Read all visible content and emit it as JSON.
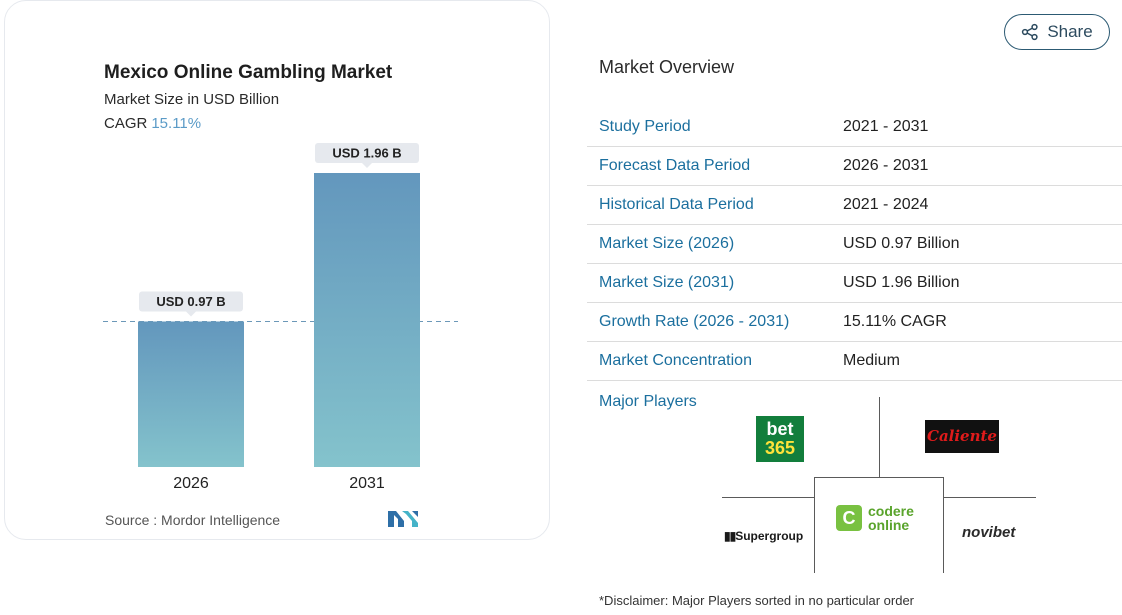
{
  "chart_card": {
    "title": "Mexico Online Gambling Market",
    "subtitle": "Market Size in USD Billion",
    "cagr_label": "CAGR",
    "cagr_value": "15.11%",
    "source": "Source :  Mordor Intelligence"
  },
  "chart_data": {
    "type": "bar",
    "title": "Mexico Online Gambling Market",
    "ylabel": "Market Size in USD Billion",
    "categories": [
      "2026",
      "2031"
    ],
    "values": [
      0.97,
      1.96
    ],
    "data_labels": [
      "USD 0.97 B",
      "USD 1.96 B"
    ],
    "ylim": [
      0,
      2.0
    ],
    "reference_line_value": 0.97,
    "colors": {
      "bar_top": "#6397bd",
      "bar_bottom": "#84c3cc",
      "label_bg": "#e6e9ee",
      "ref_line": "#6c98b8"
    }
  },
  "share": {
    "label": "Share"
  },
  "overview": {
    "title": "Market Overview",
    "rows": [
      {
        "key": "Study Period",
        "value": "2021 - 2031"
      },
      {
        "key": "Forecast Data Period",
        "value": "2026 - 2031"
      },
      {
        "key": "Historical Data Period",
        "value": "2021 - 2024"
      },
      {
        "key": "Market Size (2026)",
        "value": "USD 0.97 Billion"
      },
      {
        "key": "Market Size (2031)",
        "value": "USD 1.96 Billion"
      },
      {
        "key": "Growth Rate (2026 - 2031)",
        "value": "15.11% CAGR"
      },
      {
        "key": "Market Concentration",
        "value": "Medium"
      }
    ],
    "major_players_label": "Major Players",
    "players": {
      "bet365_top": "bet",
      "bet365_bottom": "365",
      "caliente": "Caliente",
      "codere_line1": "codere",
      "codere_line2": "online",
      "codere_mark": "C",
      "supergroup": "Supergroup",
      "novibet": "novibet"
    },
    "disclaimer": "*Disclaimer: Major Players sorted in no particular order"
  },
  "accent_colors": {
    "link_blue": "#1b6f9e",
    "cagr_blue": "#5b9bc7",
    "share_border": "#2c5a73"
  }
}
